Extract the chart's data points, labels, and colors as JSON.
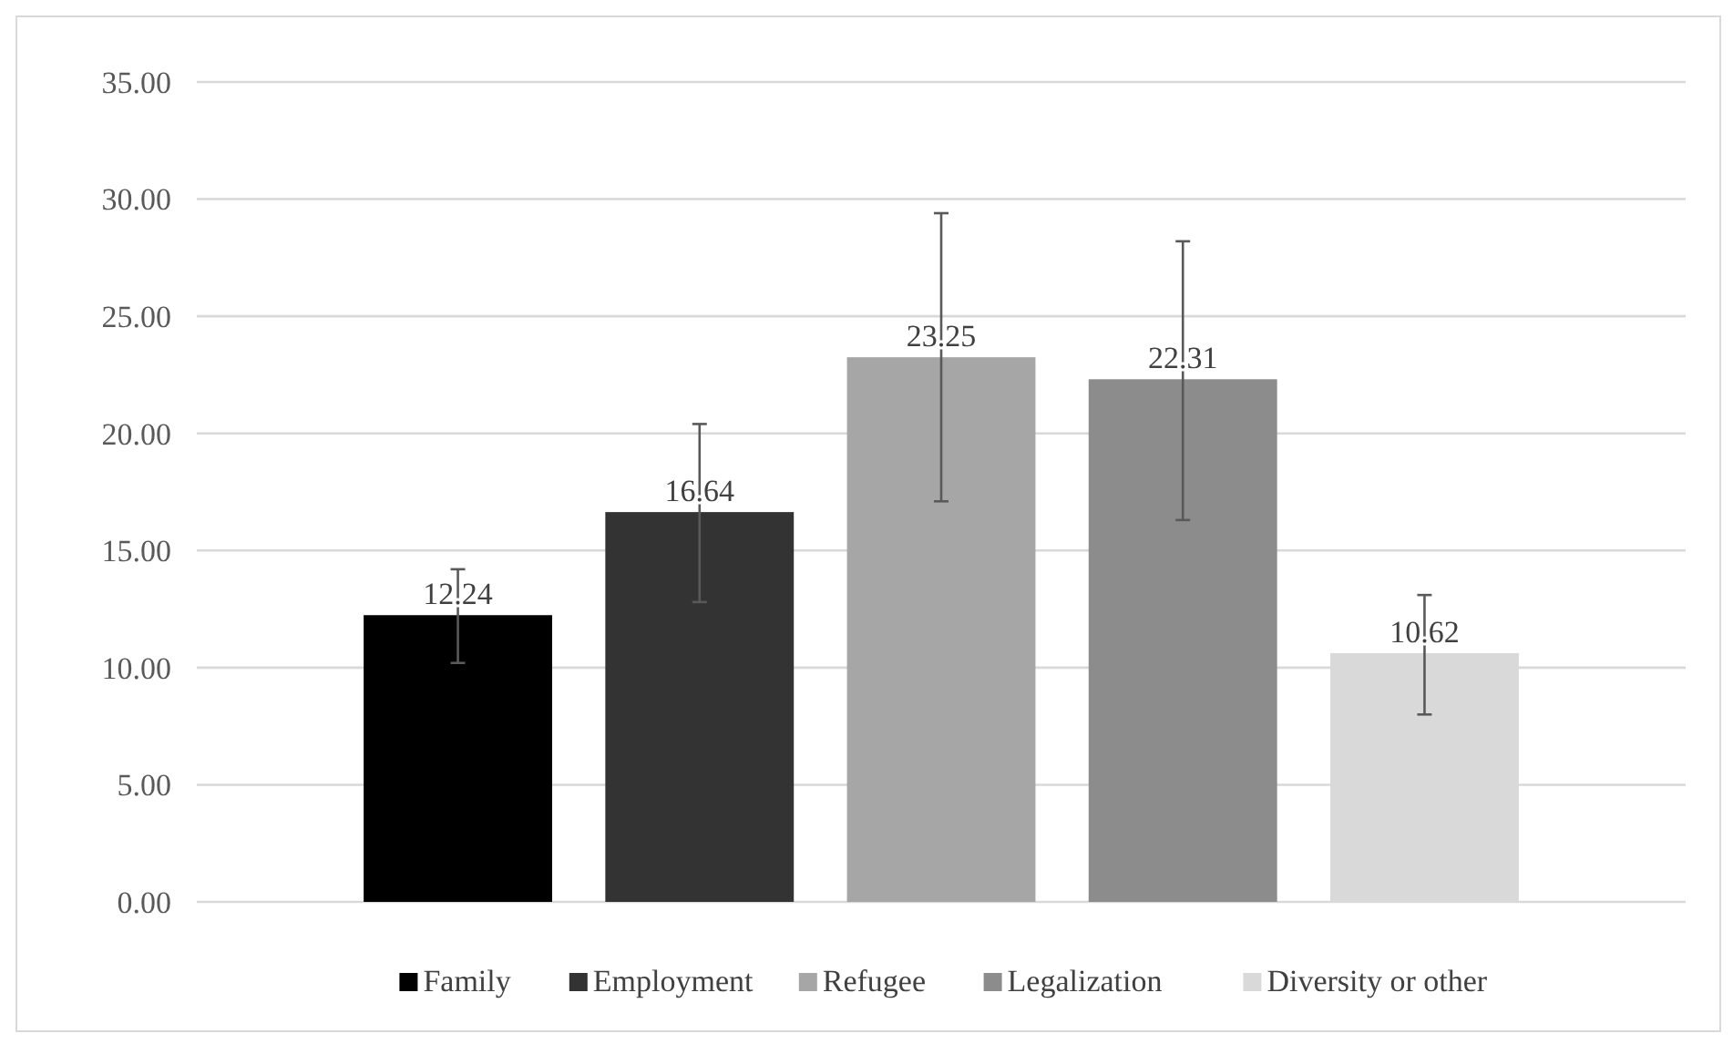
{
  "chart_data": {
    "type": "bar",
    "categories": [
      null
    ],
    "tick_labels": "y",
    "ylim": [
      0,
      35
    ],
    "yticks": [
      {
        "value": 0,
        "label": "0.00"
      },
      {
        "value": 5,
        "label": "5.00"
      },
      {
        "value": 10,
        "label": "10.00"
      },
      {
        "value": 15,
        "label": "15.00"
      },
      {
        "value": 20,
        "label": "20.00"
      },
      {
        "value": 25,
        "label": "25.00"
      },
      {
        "value": 30,
        "label": "30.00"
      },
      {
        "value": 35,
        "label": "35.00"
      }
    ],
    "grid": "y",
    "legend": "bottom",
    "data_labels": true,
    "series": [
      {
        "name": "Family",
        "color": "#000000",
        "values": [
          12.24
        ],
        "errors": [
          [
            10.2,
            14.2
          ]
        ]
      },
      {
        "name": "Employment",
        "color": "#333333",
        "values": [
          16.64
        ],
        "errors": [
          [
            12.8,
            20.4
          ]
        ]
      },
      {
        "name": "Refugee",
        "color": "#a6a6a6",
        "values": [
          23.25
        ],
        "errors": [
          [
            17.1,
            29.4
          ]
        ]
      },
      {
        "name": "Legalization",
        "color": "#8c8c8c",
        "values": [
          22.31
        ],
        "errors": [
          [
            16.3,
            28.2
          ]
        ]
      },
      {
        "name": "Diversity or other",
        "color": "#d9d9d9",
        "values": [
          10.62
        ],
        "errors": [
          [
            8.0,
            13.1
          ]
        ]
      }
    ]
  }
}
